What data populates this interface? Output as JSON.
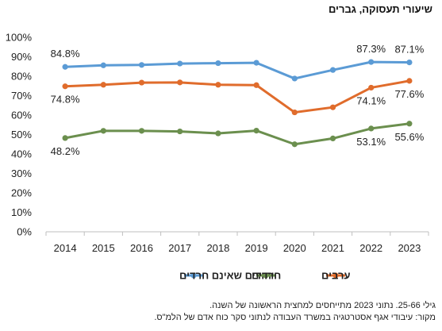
{
  "chart_data": {
    "type": "line",
    "title": "שיעורי תעסוקה, גברים",
    "xlabel": "",
    "ylabel": "",
    "x": [
      "2014",
      "2015",
      "2016",
      "2017",
      "2018",
      "2019",
      "2020",
      "2021",
      "2022",
      "2023"
    ],
    "ylim": [
      0,
      100
    ],
    "yticks": [
      "0%",
      "10%",
      "20%",
      "30%",
      "40%",
      "50%",
      "60%",
      "70%",
      "80%",
      "90%",
      "100%"
    ],
    "grid": false,
    "legend_position": "bottom",
    "series": [
      {
        "name": "יהודים שאינם חרדים",
        "color": "#5b9bd5",
        "values": [
          84.8,
          85.6,
          85.8,
          86.5,
          86.7,
          86.9,
          78.8,
          83.2,
          87.3,
          87.1
        ],
        "labels": {
          "0": "84.8%",
          "8": "87.3%",
          "9": "87.1%"
        },
        "label_side": "above"
      },
      {
        "name": "חרדים",
        "color": "#6b8f4e",
        "values": [
          48.2,
          51.9,
          51.9,
          51.6,
          50.6,
          52.0,
          45.0,
          48.0,
          53.1,
          55.6
        ],
        "labels": {
          "0": "48.2%",
          "8": "53.1%",
          "9": "55.6%"
        },
        "label_side": "below"
      },
      {
        "name": "ערבים",
        "color": "#e06c2c",
        "values": [
          74.8,
          75.6,
          76.7,
          76.8,
          75.6,
          75.4,
          61.4,
          64.0,
          74.1,
          77.6
        ],
        "labels": {
          "0": "74.8%",
          "8": "74.1%",
          "9": "77.6%"
        },
        "label_side": "below"
      }
    ]
  },
  "footnotes": {
    "line1": "גילי 25-66. נתוני 2023 מתייחסים למחצית הראשונה של השנה.",
    "line2": "מקור: עיבודי אגף אסטרטגיה במשרד העבודה לנתוני סקר כוח אדם של הלמ\"ס."
  }
}
